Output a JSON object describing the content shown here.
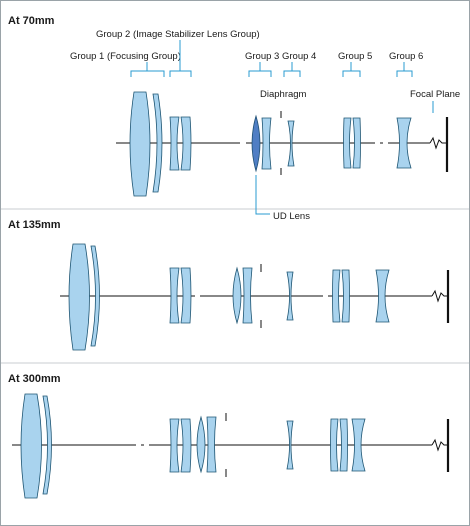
{
  "panels": [
    {
      "title": "At 70mm"
    },
    {
      "title": "At 135mm"
    },
    {
      "title": "At 300mm"
    }
  ],
  "labels": {
    "group1": "Group 1 (Focusing Group)",
    "group2": "Group 2 (Image Stabilizer Lens Group)",
    "group3": "Group 3",
    "group4": "Group 4",
    "group5": "Group 5",
    "group6": "Group 6",
    "diaphragm": "Diaphragm",
    "focal_plane": "Focal Plane",
    "ud_lens": "UD Lens"
  },
  "colors": {
    "lens_fill": "#a9d3ee",
    "ud_lens_fill": "#4f7ec4",
    "leader_line": "#2a9bd0"
  }
}
